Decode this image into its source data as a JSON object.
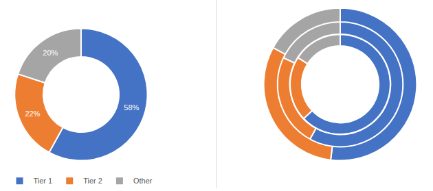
{
  "chart_data": [
    {
      "type": "donut",
      "categories": [
        "Tier 1",
        "Tier 2",
        "Other"
      ],
      "values": [
        58,
        22,
        20
      ],
      "value_labels": [
        "58%",
        "22%",
        "20%"
      ],
      "colors": [
        "#4472c4",
        "#ed7d31",
        "#a5a5a5"
      ],
      "data_labels": true,
      "legend": "bottom"
    },
    {
      "type": "donut",
      "categories": [
        "Tier 1",
        "Tier 2",
        "Other"
      ],
      "series": [
        {
          "values": [
            63,
            21,
            16
          ]
        },
        {
          "values": [
            58,
            24,
            18
          ]
        },
        {
          "values": [
            52,
            31,
            17
          ]
        }
      ],
      "colors": [
        "#4472c4",
        "#ed7d31",
        "#a5a5a5"
      ],
      "data_labels": false,
      "legend": "bottom"
    }
  ]
}
